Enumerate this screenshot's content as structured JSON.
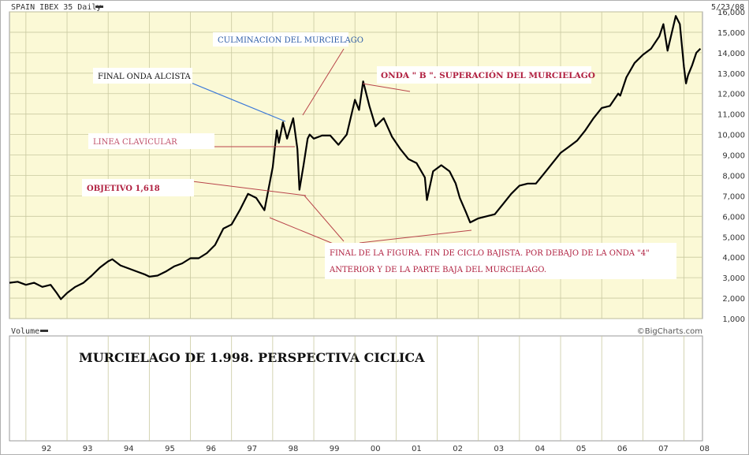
{
  "header": {
    "title": "SPAIN IBEX 35 Daily",
    "date": "5/23/08"
  },
  "volume_panel": {
    "label": "Volume",
    "credit": "©BigCharts.com",
    "caption": "MURCIELAGO DE 1.998. PERSPECTIVA CICLICA"
  },
  "annotations": {
    "culminacion": "CULMINACION DEL MURCIELAGO",
    "final_onda": "FINAL ONDA ALCISTA",
    "onda_b": "ONDA \" B \". SUPERACIÓN DEL MURCIELAGO",
    "linea": "LINEA CLAVICULAR",
    "objetivo": "OBJETIVO 1,618",
    "final_figura_1": "FINAL DE LA FIGURA. FIN DE CICLO BAJISTA. POR DEBAJO DE LA ONDA \"4\"",
    "final_figura_2": "ANTERIOR Y DE LA PARTE BAJA DEL MURCIELAGO."
  },
  "colors": {
    "plot_bg": "#fbf9d6",
    "grid": "#c9c9a0",
    "price": "#000000",
    "blue_text": "#2f5ea8",
    "pink_text": "#c0506a",
    "red_text": "#b02040",
    "red_line": "#b8444a",
    "blue_line": "#3a78d8"
  },
  "chart_data": {
    "type": "line",
    "title": "SPAIN IBEX 35 Daily",
    "xlabel": "",
    "ylabel": "",
    "x_tick_labels": [
      "92",
      "93",
      "94",
      "95",
      "96",
      "97",
      "98",
      "99",
      "00",
      "01",
      "02",
      "03",
      "04",
      "05",
      "06",
      "07",
      "08"
    ],
    "y_tick_labels": [
      "1,000",
      "2,000",
      "3,000",
      "4,000",
      "5,000",
      "6,000",
      "7,000",
      "8,000",
      "9,000",
      "10,000",
      "11,000",
      "12,000",
      "13,000",
      "14,000",
      "15,000",
      "16,000"
    ],
    "ylim": [
      1000,
      16000
    ],
    "xlim": [
      1991.6,
      2008.45
    ],
    "grid": true,
    "series": [
      {
        "x": [
          1991.6,
          1991.8,
          1992.0,
          1992.2,
          1992.4,
          1992.6,
          1992.75,
          1992.85,
          1993.0,
          1993.2,
          1993.4,
          1993.6,
          1993.8,
          1994.0,
          1994.1,
          1994.3,
          1994.5,
          1994.7,
          1994.9,
          1995.0,
          1995.2,
          1995.4,
          1995.6,
          1995.8,
          1996.0,
          1996.2,
          1996.4,
          1996.6,
          1996.8,
          1997.0,
          1997.2,
          1997.4,
          1997.6,
          1997.8,
          1998.0,
          1998.1,
          1998.15,
          1998.25,
          1998.35,
          1998.5,
          1998.6,
          1998.65,
          1998.75,
          1998.85,
          1998.9,
          1999.0,
          1999.2,
          1999.4,
          1999.6,
          1999.8,
          2000.0,
          2000.1,
          2000.2,
          2000.35,
          2000.5,
          2000.7,
          2000.9,
          2001.1,
          2001.3,
          2001.5,
          2001.7,
          2001.75,
          2001.9,
          2002.1,
          2002.3,
          2002.45,
          2002.55,
          2002.7,
          2002.8,
          2003.0,
          2003.2,
          2003.4,
          2003.6,
          2003.8,
          2004.0,
          2004.2,
          2004.4,
          2004.6,
          2004.8,
          2005.0,
          2005.2,
          2005.4,
          2005.6,
          2005.8,
          2006.0,
          2006.2,
          2006.4,
          2006.45,
          2006.6,
          2006.8,
          2007.0,
          2007.2,
          2007.4,
          2007.5,
          2007.6,
          2007.8,
          2007.9,
          2008.0,
          2008.05,
          2008.1,
          2008.2,
          2008.3,
          2008.4
        ],
        "values": [
          2750,
          2800,
          2650,
          2750,
          2550,
          2650,
          2250,
          1950,
          2250,
          2550,
          2750,
          3100,
          3500,
          3800,
          3900,
          3600,
          3450,
          3300,
          3150,
          3050,
          3100,
          3300,
          3550,
          3700,
          3950,
          3950,
          4200,
          4600,
          5400,
          5600,
          6300,
          7100,
          6900,
          6300,
          8400,
          10200,
          9600,
          10600,
          9800,
          10800,
          9300,
          7300,
          8500,
          9800,
          10000,
          9800,
          9950,
          9950,
          9500,
          10000,
          11700,
          11200,
          12600,
          11400,
          10400,
          10800,
          9900,
          9300,
          8800,
          8600,
          7900,
          6800,
          8200,
          8500,
          8200,
          7600,
          6900,
          6200,
          5700,
          5900,
          6000,
          6100,
          6600,
          7100,
          7500,
          7600,
          7600,
          8100,
          8600,
          9100,
          9400,
          9700,
          10200,
          10800,
          11300,
          11400,
          12000,
          11900,
          12800,
          13500,
          13900,
          14200,
          14800,
          15400,
          14100,
          15800,
          15400,
          13300,
          12500,
          12900,
          13400,
          14000,
          14200
        ]
      }
    ]
  }
}
